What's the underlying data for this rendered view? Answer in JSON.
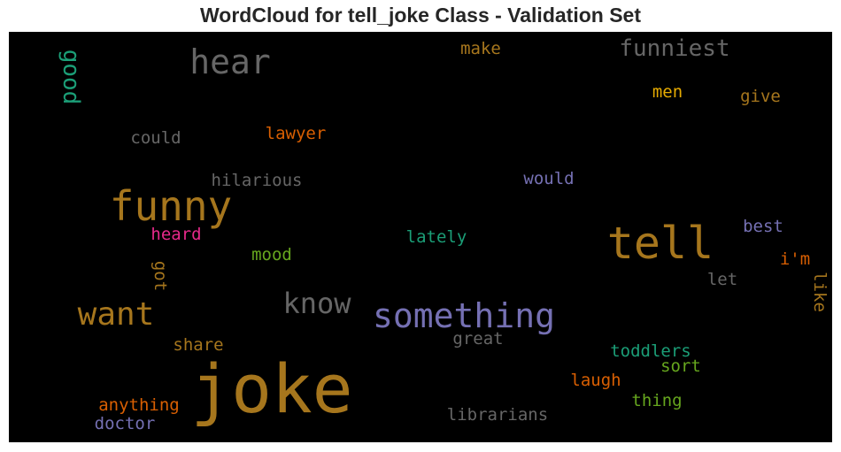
{
  "chart_data": {
    "type": "wordcloud",
    "title": "WordCloud for tell_joke Class - Validation Set",
    "background": "#000000",
    "words": [
      {
        "text": "joke",
        "weight": 1.0,
        "color": "#a6761d",
        "rotated": false
      },
      {
        "text": "tell",
        "weight": 0.72,
        "color": "#a6761d",
        "rotated": false
      },
      {
        "text": "funny",
        "weight": 0.68,
        "color": "#a6761d",
        "rotated": false
      },
      {
        "text": "something",
        "weight": 0.58,
        "color": "#7570b3",
        "rotated": false
      },
      {
        "text": "want",
        "weight": 0.52,
        "color": "#a6761d",
        "rotated": false
      },
      {
        "text": "hear",
        "weight": 0.5,
        "color": "#666666",
        "rotated": false
      },
      {
        "text": "know",
        "weight": 0.45,
        "color": "#666666",
        "rotated": false
      },
      {
        "text": "funniest",
        "weight": 0.38,
        "color": "#666666",
        "rotated": false
      },
      {
        "text": "good",
        "weight": 0.38,
        "color": "#1b9e77",
        "rotated": true
      },
      {
        "text": "lawyer",
        "weight": 0.28,
        "color": "#d95f02",
        "rotated": false
      },
      {
        "text": "heard",
        "weight": 0.28,
        "color": "#e7298a",
        "rotated": false
      },
      {
        "text": "lately",
        "weight": 0.28,
        "color": "#1b9e77",
        "rotated": false
      },
      {
        "text": "would",
        "weight": 0.28,
        "color": "#7570b3",
        "rotated": false
      },
      {
        "text": "make",
        "weight": 0.28,
        "color": "#a6761d",
        "rotated": false
      },
      {
        "text": "men",
        "weight": 0.28,
        "color": "#e6ab02",
        "rotated": false
      },
      {
        "text": "give",
        "weight": 0.28,
        "color": "#a6761d",
        "rotated": false
      },
      {
        "text": "could",
        "weight": 0.28,
        "color": "#666666",
        "rotated": false
      },
      {
        "text": "hilarious",
        "weight": 0.28,
        "color": "#666666",
        "rotated": false
      },
      {
        "text": "mood",
        "weight": 0.28,
        "color": "#66a61e",
        "rotated": false
      },
      {
        "text": "best",
        "weight": 0.28,
        "color": "#7570b3",
        "rotated": false
      },
      {
        "text": "i'm",
        "weight": 0.28,
        "color": "#d95f02",
        "rotated": false
      },
      {
        "text": "let",
        "weight": 0.28,
        "color": "#666666",
        "rotated": false
      },
      {
        "text": "like",
        "weight": 0.28,
        "color": "#a6761d",
        "rotated": true
      },
      {
        "text": "got",
        "weight": 0.28,
        "color": "#a6761d",
        "rotated": true
      },
      {
        "text": "share",
        "weight": 0.28,
        "color": "#a6761d",
        "rotated": false
      },
      {
        "text": "great",
        "weight": 0.28,
        "color": "#666666",
        "rotated": false
      },
      {
        "text": "toddlers",
        "weight": 0.28,
        "color": "#1b9e77",
        "rotated": false
      },
      {
        "text": "sort",
        "weight": 0.28,
        "color": "#66a61e",
        "rotated": false
      },
      {
        "text": "laugh",
        "weight": 0.28,
        "color": "#d95f02",
        "rotated": false
      },
      {
        "text": "thing",
        "weight": 0.28,
        "color": "#66a61e",
        "rotated": false
      },
      {
        "text": "anything",
        "weight": 0.28,
        "color": "#d95f02",
        "rotated": false
      },
      {
        "text": "doctor",
        "weight": 0.28,
        "color": "#7570b3",
        "rotated": false
      },
      {
        "text": "librarians",
        "weight": 0.28,
        "color": "#666666",
        "rotated": false
      }
    ]
  }
}
